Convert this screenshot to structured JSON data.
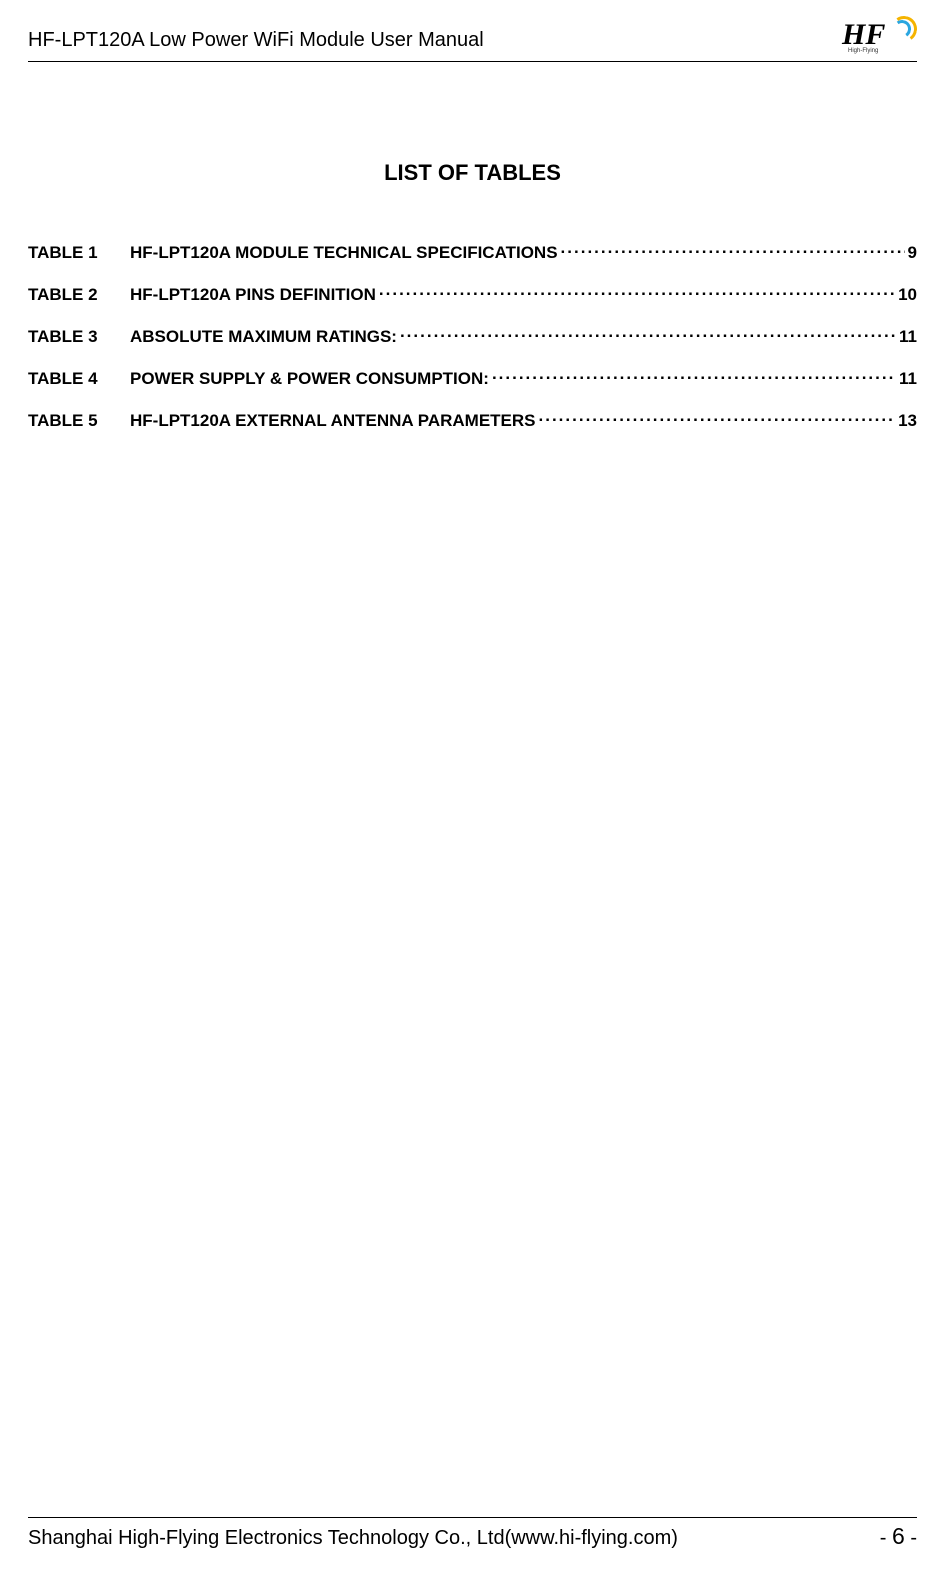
{
  "header": {
    "title": "HF-LPT120A Low Power WiFi Module User Manual",
    "logo_text": "HF",
    "logo_sub": "High-Flying"
  },
  "section_title": "LIST OF TABLES",
  "toc": [
    {
      "label": "TABLE 1",
      "text": "HF-LPT120A MODULE TECHNICAL SPECIFICATIONS",
      "page": "9"
    },
    {
      "label": "TABLE 2",
      "text": "HF-LPT120A PINS DEFINITION",
      "page": "10"
    },
    {
      "label": "TABLE 3",
      "text": "ABSOLUTE MAXIMUM RATINGS:",
      "page": "11"
    },
    {
      "label": "TABLE 4",
      "text": "POWER SUPPLY & POWER CONSUMPTION:",
      "page": "11"
    },
    {
      "label": "TABLE 5",
      "text": "HF-LPT120A EXTERNAL ANTENNA PARAMETERS",
      "page": "13"
    }
  ],
  "footer": {
    "text": "Shanghai High-Flying Electronics Technology Co., Ltd(www.hi-flying.com)",
    "page_prefix": "- ",
    "page_num": "6",
    "page_suffix": " -"
  },
  "colors": {
    "text": "#000000",
    "background": "#ffffff",
    "logo_blue": "#2aa6e0",
    "logo_yellow": "#f5b400"
  },
  "typography": {
    "header_fontsize": 20,
    "section_title_fontsize": 22,
    "toc_fontsize": 17,
    "footer_fontsize": 20
  }
}
